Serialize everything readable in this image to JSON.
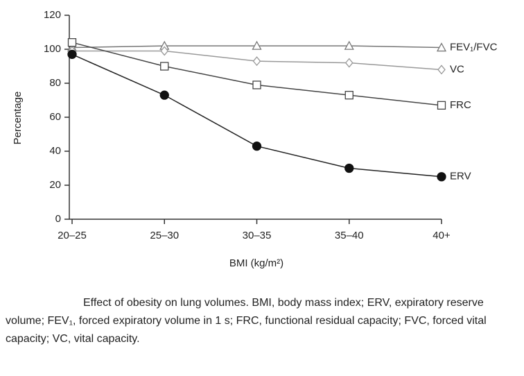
{
  "chart_data": {
    "type": "line",
    "categories": [
      "20–25",
      "25–30",
      "30–35",
      "35–40",
      "40+"
    ],
    "x_label": "BMI (kg/m²)",
    "y_label": "Percentage",
    "ylim": [
      0,
      120
    ],
    "yticks": [
      0,
      20,
      40,
      60,
      80,
      100,
      120
    ],
    "series": [
      {
        "name": "FEV₁/FVC",
        "color": "#777777",
        "marker": "triangle",
        "values": [
          101,
          102,
          102,
          102,
          101
        ]
      },
      {
        "name": "VC",
        "color": "#999999",
        "marker": "diamond",
        "values": [
          99,
          99,
          93,
          92,
          88
        ]
      },
      {
        "name": "FRC",
        "color": "#444444",
        "marker": "square",
        "values": [
          104,
          90,
          79,
          73,
          67
        ]
      },
      {
        "name": "ERV",
        "color": "#222222",
        "marker": "circle",
        "values": [
          97,
          73,
          43,
          30,
          25
        ]
      }
    ],
    "caption": "Effect of obesity on lung volumes.  BMI, body mass index; ERV, expiratory reserve volume; FEV₁, forced expiratory volume in 1 s; FRC, functional residual capacity; FVC, forced vital capacity; VC, vital capacity."
  }
}
